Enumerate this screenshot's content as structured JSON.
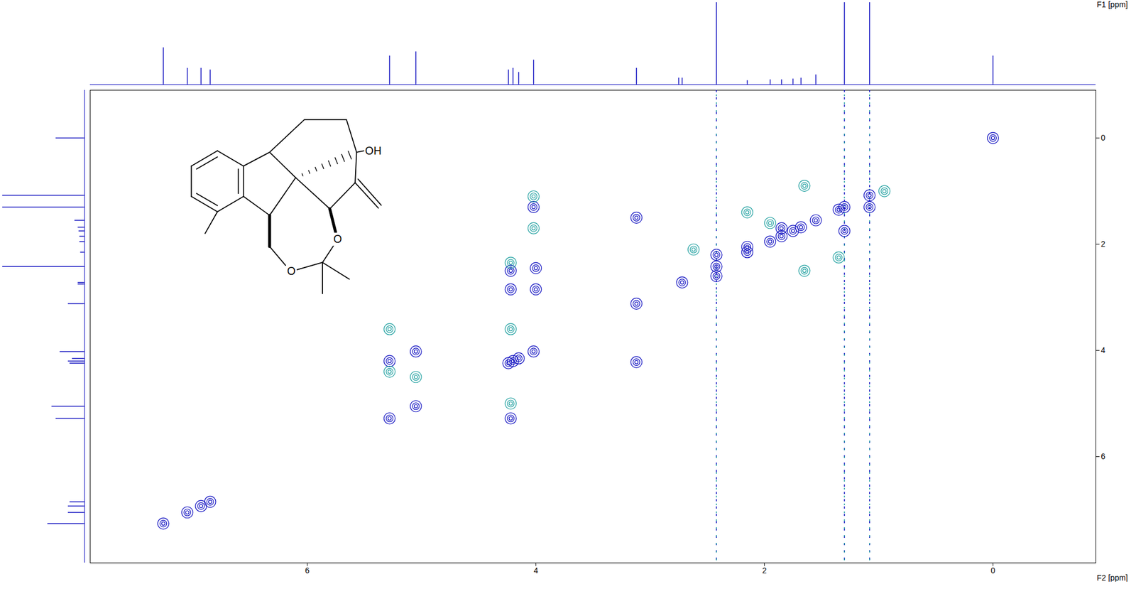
{
  "chart_data": {
    "type": "nmr_2d",
    "x_label": "F2 [ppm]",
    "y_label": "F1 [ppm]",
    "xlim": [
      7.9,
      -0.9
    ],
    "xticks": [
      6,
      4,
      2,
      0
    ],
    "ylim": [
      -0.9,
      8.0
    ],
    "yticks": [
      0,
      2,
      4,
      6
    ],
    "series": [
      {
        "color": "#1010c0",
        "x": [
          7.26,
          7.05,
          6.93,
          6.85,
          5.28,
          5.05,
          4.24,
          4.2,
          4.15,
          4.02,
          3.12,
          2.72,
          2.42,
          2.15,
          1.95,
          1.85,
          1.75,
          1.68,
          1.55,
          1.35,
          1.3,
          1.08,
          0.0,
          4.02,
          4.0,
          4.0,
          4.22,
          4.22,
          4.22,
          5.28,
          5.05,
          3.12,
          3.12,
          1.3,
          1.08,
          2.42,
          2.42,
          2.15,
          1.85
        ],
        "y": [
          7.26,
          7.05,
          6.93,
          6.85,
          5.28,
          5.05,
          4.24,
          4.2,
          4.15,
          4.02,
          3.12,
          2.72,
          2.42,
          2.15,
          1.95,
          1.85,
          1.75,
          1.68,
          1.55,
          1.35,
          1.3,
          1.08,
          0.0,
          1.3,
          2.45,
          2.85,
          2.5,
          2.85,
          5.28,
          4.2,
          4.02,
          4.22,
          1.5,
          1.75,
          1.3,
          2.6,
          2.2,
          2.05,
          1.7
        ]
      },
      {
        "color": "#20a0a0",
        "x": [
          4.22,
          4.22,
          4.22,
          5.28,
          5.28,
          5.05,
          1.65,
          1.65,
          1.95,
          2.15,
          1.35,
          0.95,
          2.62,
          4.02,
          4.02
        ],
        "y": [
          2.35,
          3.6,
          5.0,
          3.6,
          4.4,
          4.5,
          0.9,
          2.5,
          1.6,
          1.4,
          2.25,
          1.0,
          2.1,
          1.1,
          1.7
        ]
      }
    ],
    "t1_noise": {
      "x": [
        2.42,
        1.3,
        1.08
      ]
    },
    "projection": {
      "ppm": [
        7.26,
        7.05,
        6.93,
        6.85,
        5.28,
        5.05,
        4.24,
        4.2,
        4.15,
        4.02,
        3.12,
        2.75,
        2.72,
        2.42,
        2.15,
        1.95,
        1.85,
        1.75,
        1.68,
        1.55,
        1.3,
        1.08,
        0.0
      ],
      "intensity": [
        0.45,
        0.2,
        0.2,
        0.18,
        0.35,
        0.4,
        0.18,
        0.2,
        0.15,
        0.3,
        0.2,
        0.08,
        0.08,
        1.0,
        0.05,
        0.06,
        0.06,
        0.07,
        0.08,
        0.12,
        1.0,
        1.0,
        0.35
      ]
    },
    "structure": {
      "labels": [
        "OH",
        "O",
        "O"
      ]
    }
  }
}
